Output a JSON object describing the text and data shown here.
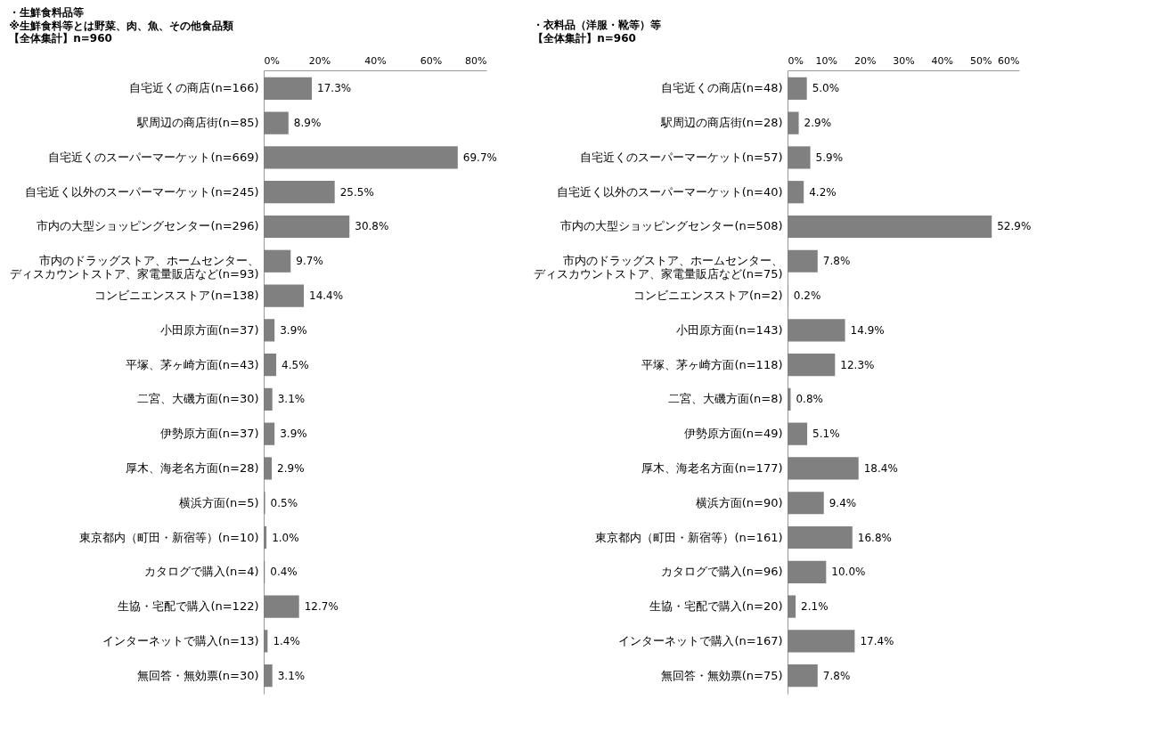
{
  "chart_data": [
    {
      "type": "bar",
      "orientation": "horizontal",
      "title": "・生鮮食料品等",
      "subtitle": "※生鮮食料等とは野菜、肉、魚、その他食品類",
      "annotations": [
        "【全体集計】n=960"
      ],
      "categories": [
        "自宅近くの商店(n=166)",
        "駅周辺の商店街(n=85)",
        "自宅近くのスーパーマーケット(n=669)",
        "自宅近く以外のスーパーマーケット(n=245)",
        "市内の大型ショッピングセンター(n=296)",
        "市内のドラッグストア、ホームセンター、ディスカウントストア、家電量販店など(n=93)",
        "コンビニエンスストア(n=138)",
        "小田原方面(n=37)",
        "平塚、茅ヶ崎方面(n=43)",
        "二宮、大磯方面(n=30)",
        "伊勢原方面(n=37)",
        "厚木、海老名方面(n=28)",
        "横浜方面(n=5)",
        "東京都内（町田・新宿等）(n=10)",
        "カタログで購入(n=4)",
        "生協・宅配で購入(n=122)",
        "インターネットで購入(n=13)",
        "無回答・無効票(n=30)"
      ],
      "values": [
        17.3,
        8.9,
        69.7,
        25.5,
        30.8,
        9.7,
        14.4,
        3.9,
        4.5,
        3.1,
        3.9,
        2.9,
        0.5,
        1.0,
        0.4,
        12.7,
        1.4,
        3.1
      ],
      "value_labels": [
        "17.3%",
        "8.9%",
        "69.7%",
        "25.5%",
        "30.8%",
        "9.7%",
        "14.4%",
        "3.9%",
        "4.5%",
        "3.1%",
        "3.9%",
        "2.9%",
        "0.5%",
        "1.0%",
        "0.4%",
        "12.7%",
        "1.4%",
        "3.1%"
      ],
      "color": "#808080",
      "xlim": [
        0,
        80
      ],
      "xticks": [
        {
          "value": 0,
          "label": "0%"
        },
        {
          "value": 20,
          "label": "20%"
        },
        {
          "value": 40,
          "label": "40%"
        },
        {
          "value": 60,
          "label": "60%"
        },
        {
          "value": 80,
          "label": "80%"
        }
      ],
      "grid": false
    },
    {
      "type": "bar",
      "orientation": "horizontal",
      "title": "・衣料品（洋服・靴等）等",
      "annotations": [
        "【全体集計】n=960"
      ],
      "categories": [
        "自宅近くの商店(n=48)",
        "駅周辺の商店街(n=28)",
        "自宅近くのスーパーマーケット(n=57)",
        "自宅近く以外のスーパーマーケット(n=40)",
        "市内の大型ショッピングセンター(n=508)",
        "市内のドラッグストア、ホームセンター、ディスカウントストア、家電量販店など(n=75)",
        "コンビニエンスストア(n=2)",
        "小田原方面(n=143)",
        "平塚、茅ヶ崎方面(n=118)",
        "二宮、大磯方面(n=8)",
        "伊勢原方面(n=49)",
        "厚木、海老名方面(n=177)",
        "横浜方面(n=90)",
        "東京都内（町田・新宿等）(n=161)",
        "カタログで購入(n=96)",
        "生協・宅配で購入(n=20)",
        "インターネットで購入(n=167)",
        "無回答・無効票(n=75)"
      ],
      "values": [
        5.0,
        2.9,
        5.9,
        4.2,
        52.9,
        7.8,
        0.2,
        14.9,
        12.3,
        0.8,
        5.1,
        18.4,
        9.4,
        16.8,
        10.0,
        2.1,
        17.4,
        7.8
      ],
      "value_labels": [
        "5.0%",
        "2.9%",
        "5.9%",
        "4.2%",
        "52.9%",
        "7.8%",
        "0.2%",
        "14.9%",
        "12.3%",
        "0.8%",
        "5.1%",
        "18.4%",
        "9.4%",
        "16.8%",
        "10.0%",
        "2.1%",
        "17.4%",
        "7.8%"
      ],
      "color": "#808080",
      "xlim": [
        0,
        60
      ],
      "xticks": [
        {
          "value": 0,
          "label": "0%"
        },
        {
          "value": 10,
          "label": "10%"
        },
        {
          "value": 20,
          "label": "20%"
        },
        {
          "value": 30,
          "label": "30%"
        },
        {
          "value": 40,
          "label": "40%"
        },
        {
          "value": 50,
          "label": "50%"
        },
        {
          "value": 60,
          "label": "60%"
        }
      ],
      "grid": false
    }
  ]
}
